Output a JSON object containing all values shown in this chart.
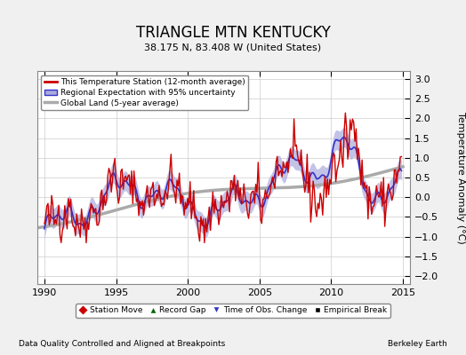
{
  "title": "TRIANGLE MTN KENTUCKY",
  "subtitle": "38.175 N, 83.408 W (United States)",
  "ylabel": "Temperature Anomaly (°C)",
  "footer_left": "Data Quality Controlled and Aligned at Breakpoints",
  "footer_right": "Berkeley Earth",
  "xlim": [
    1989.5,
    2015.5
  ],
  "ylim": [
    -2.2,
    3.2
  ],
  "yticks": [
    -2,
    -1.5,
    -1,
    -0.5,
    0,
    0.5,
    1,
    1.5,
    2,
    2.5,
    3
  ],
  "xticks": [
    1990,
    1995,
    2000,
    2005,
    2010,
    2015
  ],
  "background_color": "#f0f0f0",
  "plot_bg_color": "#ffffff",
  "legend_labels": [
    "This Temperature Station (12-month average)",
    "Regional Expectation with 95% uncertainty",
    "Global Land (5-year average)"
  ],
  "legend_colors": [
    "#cc0000",
    "#3333cc",
    "#aaaaaa"
  ],
  "station_color": "#cc0000",
  "regional_color": "#3333cc",
  "regional_fill_color": "#aaaadd",
  "global_color": "#aaaaaa",
  "seed": 42
}
